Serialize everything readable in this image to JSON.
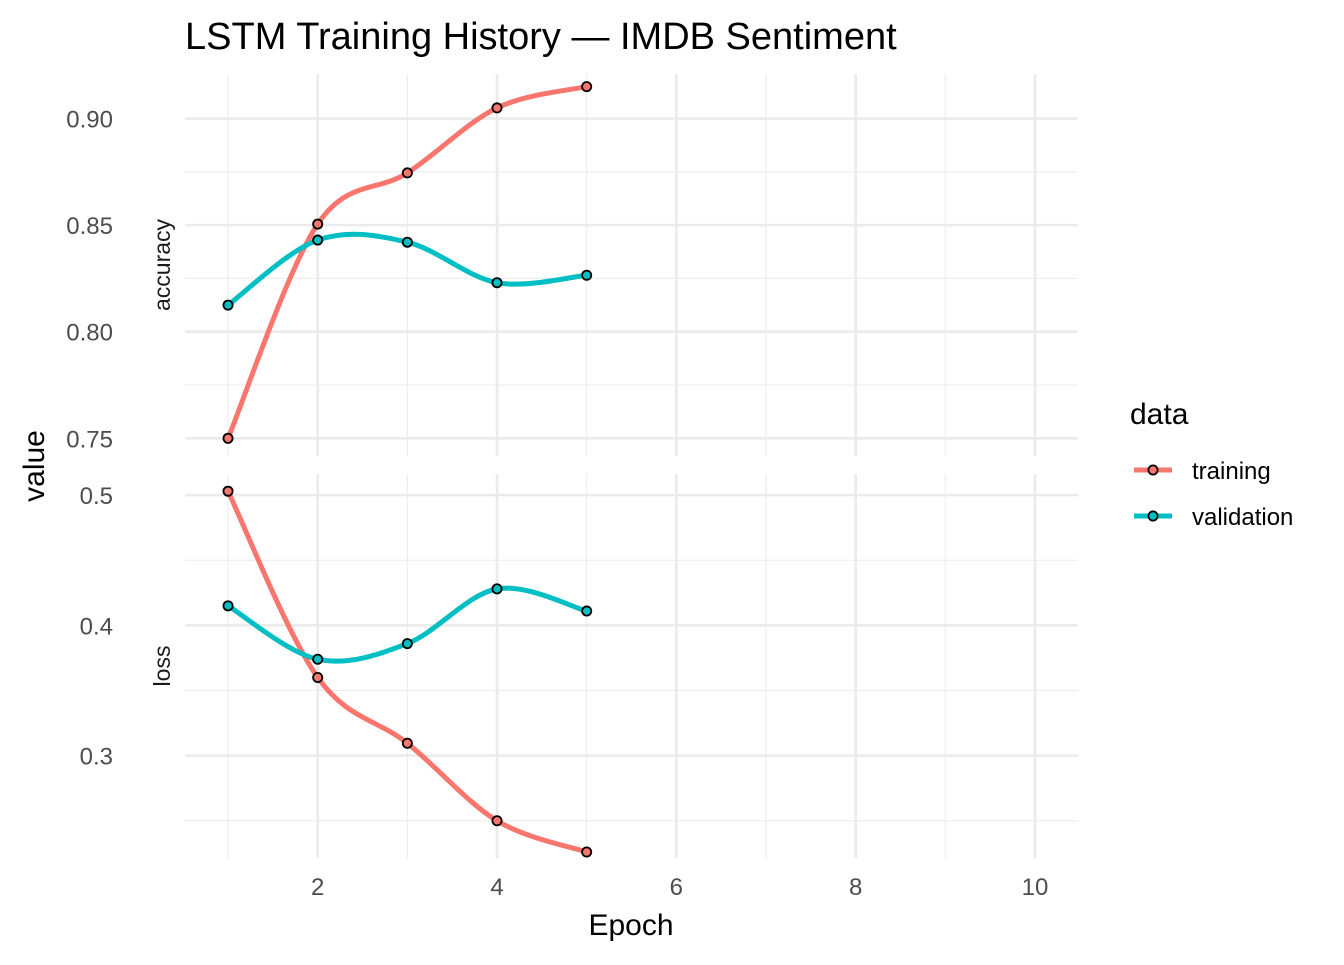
{
  "chart_data": {
    "type": "line",
    "title": "LSTM Training History — IMDB Sentiment",
    "xlabel": "Epoch",
    "ylabel": "value",
    "xlim": [
      0.52,
      10.48
    ],
    "x_ticks": [
      2,
      4,
      6,
      8,
      10
    ],
    "x_tick_labels": [
      "2",
      "4",
      "6",
      "8",
      "10"
    ],
    "x_minor_ticks": [
      1,
      3,
      5,
      7,
      9
    ],
    "legend": {
      "title": "data",
      "position": "right",
      "entries": [
        "training",
        "validation"
      ]
    },
    "colors": {
      "training": "#F8766D",
      "validation": "#00BFC4"
    },
    "facets": [
      {
        "label": "accuracy",
        "ylim": [
          0.7417,
          0.9209
        ],
        "y_ticks": [
          0.75,
          0.8,
          0.85,
          0.9
        ],
        "y_tick_labels": [
          "0.75",
          "0.80",
          "0.85",
          "0.90"
        ],
        "y_minor_ticks": [
          0.775,
          0.825,
          0.875
        ],
        "series": [
          {
            "name": "training",
            "x": [
              1,
              2,
              3,
              4,
              5
            ],
            "values": [
              0.75,
              0.8505,
              0.8745,
              0.905,
              0.915
            ]
          },
          {
            "name": "validation",
            "x": [
              1,
              2,
              3,
              4,
              5
            ],
            "values": [
              0.8125,
              0.843,
              0.842,
              0.823,
              0.8265
            ]
          }
        ]
      },
      {
        "label": "loss",
        "ylim": [
          0.2214,
          0.5162
        ],
        "y_ticks": [
          0.3,
          0.4,
          0.5
        ],
        "y_tick_labels": [
          "0.3",
          "0.4",
          "0.5"
        ],
        "y_minor_ticks": [
          0.25,
          0.35,
          0.45
        ],
        "series": [
          {
            "name": "training",
            "x": [
              1,
              2,
              3,
              4,
              5
            ],
            "values": [
              0.503,
              0.36,
              0.3095,
              0.25,
              0.226
            ]
          },
          {
            "name": "validation",
            "x": [
              1,
              2,
              3,
              4,
              5
            ],
            "values": [
              0.415,
              0.374,
              0.386,
              0.428,
              0.411
            ]
          }
        ]
      }
    ]
  }
}
